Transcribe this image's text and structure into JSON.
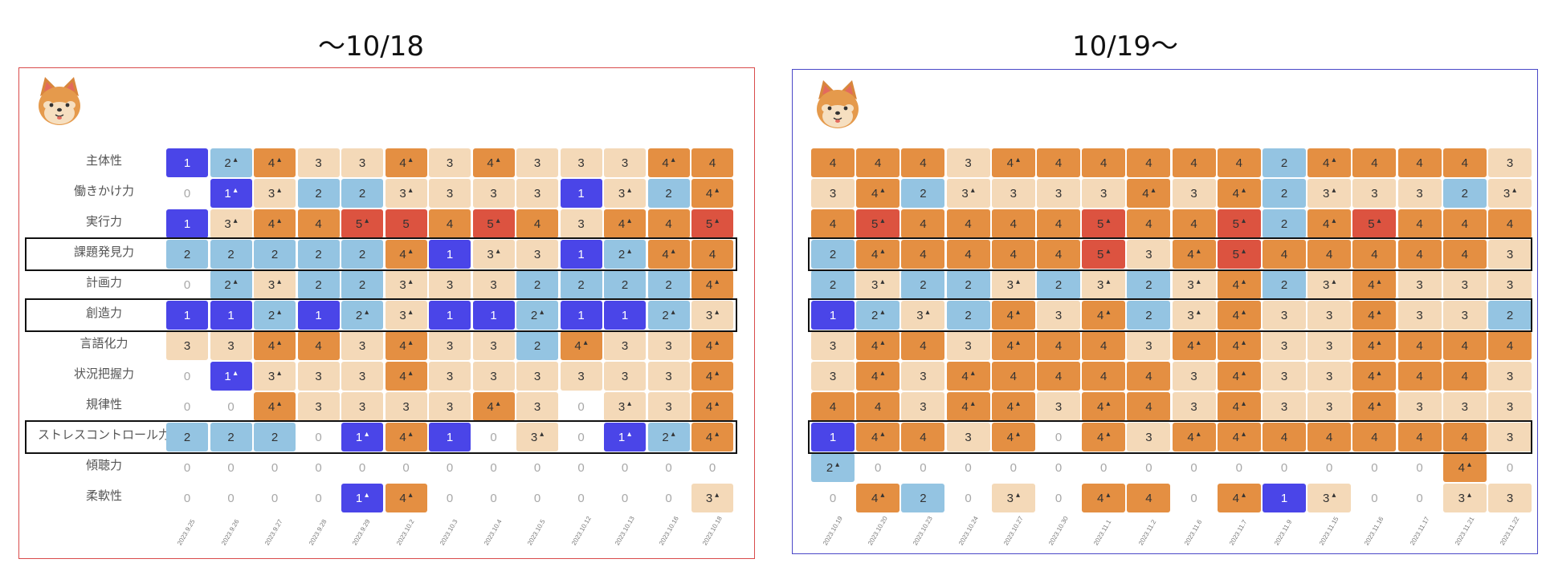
{
  "periods": {
    "left_title": "〜10/18",
    "right_title": "10/19〜"
  },
  "icon": "shiba-dog-icon",
  "colors": {
    "lv0": "#ffffff",
    "lv1": "#4a45e8",
    "lv2": "#94c4e2",
    "lv3": "#f4d9b8",
    "lv4": "#e48f42",
    "lv5": "#dc5340",
    "left_frame": "#d94b4b",
    "right_frame": "#4a48c8",
    "highlight": "#111111"
  },
  "skills": [
    "主体性",
    "働きかけ力",
    "実行力",
    "課題発見力",
    "計画力",
    "創造力",
    "言語化力",
    "状況把握力",
    "規律性",
    "ストレスコントロール力",
    "傾聴力",
    "柔軟性"
  ],
  "highlighted_skills": [
    "課題発見力",
    "創造力",
    "ストレスコントロール力"
  ],
  "left": {
    "dates": [
      "2023.9.25",
      "2023.9.26",
      "2023.9.27",
      "2023.9.28",
      "2023.9.29",
      "2023.10.2",
      "2023.10.3",
      "2023.10.4",
      "2023.10.5",
      "2023.10.12",
      "2023.10.13",
      "2023.10.16",
      "2023.10.18"
    ],
    "rows": [
      [
        "1",
        "2^",
        "4^",
        "3",
        "3",
        "4^",
        "3",
        "4^",
        "3",
        "3",
        "3",
        "4^",
        "4"
      ],
      [
        "0",
        "1^",
        "3^",
        "2",
        "2",
        "3^",
        "3",
        "3",
        "3",
        "1",
        "3^",
        "2",
        "4^"
      ],
      [
        "1",
        "3^",
        "4^",
        "4",
        "5^",
        "5",
        "4",
        "5^",
        "4",
        "3",
        "4^",
        "4",
        "5^"
      ],
      [
        "2",
        "2",
        "2",
        "2",
        "2",
        "4^",
        "1",
        "3^",
        "3",
        "1",
        "2^",
        "4^",
        "4"
      ],
      [
        "0",
        "2^",
        "3^",
        "2",
        "2",
        "3^",
        "3",
        "3",
        "2",
        "2",
        "2",
        "2",
        "4^"
      ],
      [
        "1",
        "1",
        "2^",
        "1",
        "2^",
        "3^",
        "1",
        "1",
        "2^",
        "1",
        "1",
        "2^",
        "3^"
      ],
      [
        "3",
        "3",
        "4^",
        "4",
        "3",
        "4^",
        "3",
        "3",
        "2",
        "4^",
        "3",
        "3",
        "4^"
      ],
      [
        "0",
        "1^",
        "3^",
        "3",
        "3",
        "4^",
        "3",
        "3",
        "3",
        "3",
        "3",
        "3",
        "4^"
      ],
      [
        "0",
        "0",
        "4^",
        "3",
        "3",
        "3",
        "3",
        "4^",
        "3",
        "0",
        "3^",
        "3",
        "4^"
      ],
      [
        "2",
        "2",
        "2",
        "0",
        "1^",
        "4^",
        "1",
        "0",
        "3^",
        "0",
        "1^",
        "2^",
        "4^"
      ],
      [
        "0",
        "0",
        "0",
        "0",
        "0",
        "0",
        "0",
        "0",
        "0",
        "0",
        "0",
        "0",
        "0"
      ],
      [
        "0",
        "0",
        "0",
        "0",
        "1^",
        "4^",
        "0",
        "0",
        "0",
        "0",
        "0",
        "0",
        "3^"
      ]
    ]
  },
  "right": {
    "dates": [
      "2023.10.19",
      "2023.10.20",
      "2023.10.23",
      "2023.10.24",
      "2023.10.27",
      "2023.10.30",
      "2023.11.1",
      "2023.11.2",
      "2023.11.6",
      "2023.11.7",
      "2023.11.9",
      "2023.11.15",
      "2023.11.16",
      "2023.11.17",
      "2023.11.21",
      "2023.11.22"
    ],
    "rows": [
      [
        "4",
        "4",
        "4",
        "3",
        "4^",
        "4",
        "4",
        "4",
        "4",
        "4",
        "2",
        "4^",
        "4",
        "4",
        "4",
        "3"
      ],
      [
        "3",
        "4^",
        "2",
        "3^",
        "3",
        "3",
        "3",
        "4^",
        "3",
        "4^",
        "2",
        "3^",
        "3",
        "3",
        "2",
        "3^"
      ],
      [
        "4",
        "5^",
        "4",
        "4",
        "4",
        "4",
        "5^",
        "4",
        "4",
        "5^",
        "2",
        "4^",
        "5^",
        "4",
        "4",
        "4"
      ],
      [
        "2",
        "4^",
        "4",
        "4",
        "4",
        "4",
        "5^",
        "3",
        "4^",
        "5^",
        "4",
        "4",
        "4",
        "4",
        "4",
        "3"
      ],
      [
        "2",
        "3^",
        "2",
        "2",
        "3^",
        "2",
        "3^",
        "2",
        "3^",
        "4^",
        "2",
        "3^",
        "4^",
        "3",
        "3",
        "3"
      ],
      [
        "1",
        "2^",
        "3^",
        "2",
        "4^",
        "3",
        "4^",
        "2",
        "3^",
        "4^",
        "3",
        "3",
        "4^",
        "3",
        "3",
        "2"
      ],
      [
        "3",
        "4^",
        "4",
        "3",
        "4^",
        "4",
        "4",
        "3",
        "4^",
        "4^",
        "3",
        "3",
        "4^",
        "4",
        "4",
        "4"
      ],
      [
        "3",
        "4^",
        "3",
        "4^",
        "4",
        "4",
        "4",
        "4",
        "3",
        "4^",
        "3",
        "3",
        "4^",
        "4",
        "4",
        "3"
      ],
      [
        "4",
        "4",
        "3",
        "4^",
        "4^",
        "3",
        "4^",
        "4",
        "3",
        "4^",
        "3",
        "3",
        "4^",
        "3",
        "3",
        "3"
      ],
      [
        "1",
        "4^",
        "4",
        "3",
        "4^",
        "0",
        "4^",
        "3",
        "4^",
        "4^",
        "4",
        "4",
        "4",
        "4",
        "4",
        "3"
      ],
      [
        "2^",
        "0",
        "0",
        "0",
        "0",
        "0",
        "0",
        "0",
        "0",
        "0",
        "0",
        "0",
        "0",
        "0",
        "4^",
        "0"
      ],
      [
        "0",
        "4^",
        "2",
        "0",
        "3^",
        "0",
        "4^",
        "4",
        "0",
        "4^",
        "1",
        "3^",
        "0",
        "0",
        "3^",
        "3"
      ]
    ]
  }
}
